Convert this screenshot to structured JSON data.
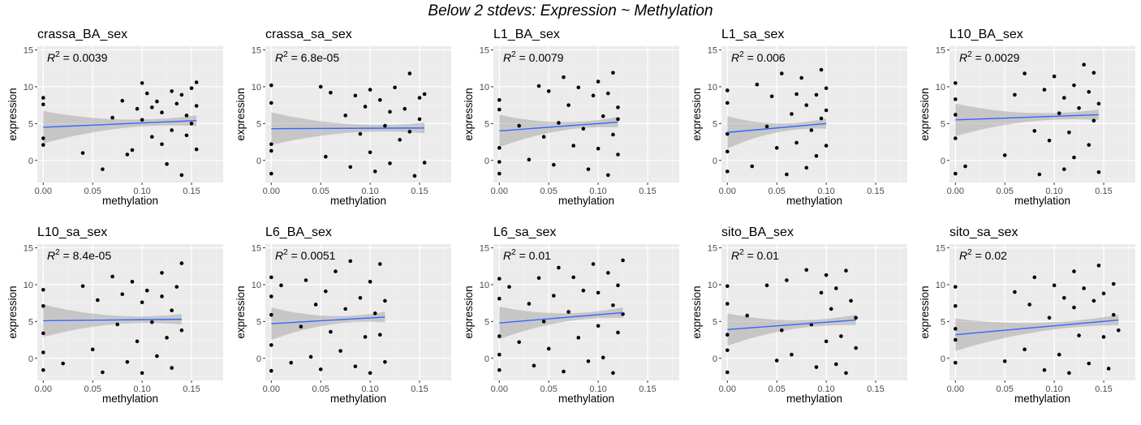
{
  "title": "Below 2 stdevs: Expression ~ Methylation",
  "chart_data": [
    {
      "type": "scatter",
      "title": "crassa_BA_sex",
      "r2_label": "R",
      "r2_value": " = 0.0039",
      "xlabel": "methylation",
      "ylabel": "expression",
      "xlim": [
        -0.006,
        0.182
      ],
      "ylim": [
        -3,
        15.5
      ],
      "xticks": [
        "0.00",
        "0.05",
        "0.10",
        "0.15"
      ],
      "yticks": [
        "0",
        "5",
        "10",
        "15"
      ],
      "fit": {
        "x": [
          0,
          0.155
        ],
        "y": [
          4.5,
          5.4
        ]
      },
      "points_x": [
        0,
        0,
        0,
        0,
        0.04,
        0.06,
        0.07,
        0.08,
        0.085,
        0.09,
        0.095,
        0.1,
        0.1,
        0.105,
        0.11,
        0.11,
        0.115,
        0.12,
        0.12,
        0.125,
        0.13,
        0.13,
        0.135,
        0.14,
        0.14,
        0.145,
        0.145,
        0.15,
        0.15,
        0.155,
        0.155,
        0.155
      ],
      "points_y": [
        8.5,
        7.6,
        3.0,
        2.1,
        1.0,
        -1.2,
        5.8,
        8.1,
        0.8,
        1.4,
        7.0,
        10.5,
        5.5,
        9.1,
        7.2,
        3.2,
        8.0,
        6.5,
        2.2,
        -0.5,
        9.4,
        4.1,
        7.7,
        8.9,
        -2.0,
        6.1,
        3.4,
        9.8,
        5.0,
        10.6,
        7.4,
        1.5
      ]
    },
    {
      "type": "scatter",
      "title": "crassa_sa_sex",
      "r2_label": "R",
      "r2_value": " = 6.8e-05",
      "xlabel": "methylation",
      "ylabel": "expression",
      "xlim": [
        -0.006,
        0.182
      ],
      "ylim": [
        -3,
        15.5
      ],
      "xticks": [
        "0.00",
        "0.05",
        "0.10",
        "0.15"
      ],
      "yticks": [
        "0",
        "5",
        "10",
        "15"
      ],
      "fit": {
        "x": [
          0,
          0.155
        ],
        "y": [
          4.3,
          4.4
        ]
      },
      "points_x": [
        0,
        0,
        0,
        0,
        0,
        0.05,
        0.055,
        0.06,
        0.075,
        0.08,
        0.085,
        0.09,
        0.095,
        0.1,
        0.1,
        0.105,
        0.11,
        0.115,
        0.12,
        0.12,
        0.125,
        0.13,
        0.135,
        0.14,
        0.14,
        0.145,
        0.15,
        0.15,
        0.155,
        0.155
      ],
      "points_y": [
        10.2,
        7.8,
        2.2,
        -1.8,
        1.3,
        10.0,
        0.5,
        9.2,
        6.1,
        -0.9,
        8.8,
        3.6,
        7.3,
        9.6,
        1.1,
        -1.5,
        8.2,
        4.7,
        6.6,
        -0.4,
        9.9,
        2.8,
        7.0,
        11.8,
        3.9,
        -2.1,
        8.5,
        5.6,
        9.0,
        -0.3
      ]
    },
    {
      "type": "scatter",
      "title": "L1_BA_sex",
      "r2_label": "R",
      "r2_value": " = 0.0079",
      "xlabel": "methylation",
      "ylabel": "expression",
      "xlim": [
        -0.006,
        0.182
      ],
      "ylim": [
        -3,
        15.5
      ],
      "xticks": [
        "0.00",
        "0.05",
        "0.10",
        "0.15"
      ],
      "yticks": [
        "0",
        "5",
        "10",
        "15"
      ],
      "fit": {
        "x": [
          0,
          0.12
        ],
        "y": [
          4.0,
          5.2
        ]
      },
      "points_x": [
        0,
        0,
        0,
        0,
        0,
        0.02,
        0.03,
        0.04,
        0.045,
        0.05,
        0.055,
        0.06,
        0.065,
        0.07,
        0.075,
        0.08,
        0.085,
        0.09,
        0.095,
        0.1,
        0.1,
        0.105,
        0.11,
        0.11,
        0.115,
        0.115,
        0.12,
        0.12,
        0.12
      ],
      "points_y": [
        8.2,
        6.9,
        -1.8,
        1.7,
        -0.2,
        4.7,
        0.1,
        10.1,
        3.2,
        9.4,
        -0.6,
        5.1,
        11.3,
        7.5,
        2.0,
        9.9,
        4.3,
        -1.2,
        8.8,
        1.6,
        10.7,
        6.0,
        -2.0,
        9.1,
        3.5,
        11.9,
        7.2,
        0.8,
        5.6
      ]
    },
    {
      "type": "scatter",
      "title": "L1_sa_sex",
      "r2_label": "R",
      "r2_value": " = 0.006",
      "xlabel": "methylation",
      "ylabel": "expression",
      "xlim": [
        -0.006,
        0.182
      ],
      "ylim": [
        -3,
        15.5
      ],
      "xticks": [
        "0.00",
        "0.05",
        "0.10",
        "0.15"
      ],
      "yticks": [
        "0",
        "5",
        "10",
        "15"
      ],
      "fit": {
        "x": [
          0,
          0.1
        ],
        "y": [
          3.8,
          5.0
        ]
      },
      "points_x": [
        0,
        0,
        0,
        0,
        0,
        0.025,
        0.03,
        0.04,
        0.045,
        0.05,
        0.055,
        0.06,
        0.065,
        0.07,
        0.07,
        0.075,
        0.08,
        0.08,
        0.085,
        0.09,
        0.09,
        0.095,
        0.095,
        0.1,
        0.1,
        0.1
      ],
      "points_y": [
        9.5,
        7.8,
        -1.5,
        1.2,
        3.6,
        -0.8,
        10.3,
        4.6,
        8.7,
        1.7,
        11.8,
        -1.9,
        6.3,
        9.0,
        2.4,
        11.2,
        -1.0,
        7.5,
        4.1,
        8.9,
        0.6,
        5.7,
        12.3,
        9.8,
        2.0,
        6.8
      ]
    },
    {
      "type": "scatter",
      "title": "L10_BA_sex",
      "r2_label": "R",
      "r2_value": " = 0.0029",
      "xlabel": "methylation",
      "ylabel": "expression",
      "xlim": [
        -0.006,
        0.182
      ],
      "ylim": [
        -3,
        15.5
      ],
      "xticks": [
        "0.00",
        "0.05",
        "0.10",
        "0.15"
      ],
      "yticks": [
        "0",
        "5",
        "10",
        "15"
      ],
      "fit": {
        "x": [
          0,
          0.145
        ],
        "y": [
          5.5,
          6.2
        ]
      },
      "points_x": [
        0,
        0,
        0,
        0,
        0,
        0.01,
        0.05,
        0.06,
        0.07,
        0.08,
        0.085,
        0.09,
        0.095,
        0.1,
        0.105,
        0.11,
        0.11,
        0.115,
        0.12,
        0.12,
        0.125,
        0.13,
        0.135,
        0.135,
        0.14,
        0.14,
        0.145,
        0.145
      ],
      "points_y": [
        10.5,
        8.3,
        6.2,
        -1.8,
        3.0,
        -0.8,
        0.7,
        8.9,
        11.8,
        4.0,
        -1.9,
        9.6,
        2.7,
        11.4,
        6.4,
        -1.2,
        8.5,
        3.8,
        10.2,
        0.4,
        7.1,
        13.0,
        2.1,
        9.3,
        5.4,
        11.9,
        -1.6,
        7.7
      ]
    },
    {
      "type": "scatter",
      "title": "L10_sa_sex",
      "r2_label": "R",
      "r2_value": " = 8.4e-05",
      "xlabel": "methylation",
      "ylabel": "expression",
      "xlim": [
        -0.006,
        0.182
      ],
      "ylim": [
        -3,
        15.5
      ],
      "xticks": [
        "0.00",
        "0.05",
        "0.10",
        "0.15"
      ],
      "yticks": [
        "0",
        "5",
        "10",
        "15"
      ],
      "fit": {
        "x": [
          0,
          0.14
        ],
        "y": [
          5.1,
          5.3
        ]
      },
      "points_x": [
        0,
        0,
        0,
        0,
        0,
        0.02,
        0.04,
        0.05,
        0.055,
        0.06,
        0.07,
        0.075,
        0.08,
        0.085,
        0.09,
        0.095,
        0.1,
        0.1,
        0.105,
        0.11,
        0.115,
        0.12,
        0.12,
        0.125,
        0.13,
        0.13,
        0.135,
        0.14,
        0.14
      ],
      "points_y": [
        9.3,
        7.1,
        -1.6,
        3.4,
        0.8,
        -0.7,
        9.8,
        1.2,
        7.9,
        -1.9,
        11.1,
        4.6,
        8.7,
        -0.5,
        10.4,
        2.3,
        7.6,
        -2.0,
        9.2,
        4.9,
        0.3,
        8.4,
        11.6,
        2.8,
        6.5,
        -1.3,
        9.7,
        12.9,
        3.8
      ]
    },
    {
      "type": "scatter",
      "title": "L6_BA_sex",
      "r2_label": "R",
      "r2_value": " = 0.0051",
      "xlabel": "methylation",
      "ylabel": "expression",
      "xlim": [
        -0.006,
        0.182
      ],
      "ylim": [
        -3,
        15.5
      ],
      "xticks": [
        "0.00",
        "0.05",
        "0.10",
        "0.15"
      ],
      "yticks": [
        "0",
        "5",
        "10",
        "15"
      ],
      "fit": {
        "x": [
          0,
          0.115
        ],
        "y": [
          4.7,
          5.6
        ]
      },
      "points_x": [
        0,
        0,
        0,
        0,
        0,
        0.01,
        0.02,
        0.03,
        0.035,
        0.04,
        0.045,
        0.05,
        0.055,
        0.06,
        0.065,
        0.07,
        0.075,
        0.08,
        0.085,
        0.09,
        0.095,
        0.1,
        0.1,
        0.105,
        0.11,
        0.11,
        0.115,
        0.115
      ],
      "points_y": [
        11.0,
        8.4,
        -1.7,
        5.9,
        1.8,
        9.9,
        -0.6,
        4.3,
        10.6,
        0.2,
        7.3,
        -1.5,
        9.1,
        3.6,
        11.8,
        1.0,
        6.7,
        13.2,
        -1.1,
        8.2,
        2.9,
        10.4,
        -2.0,
        6.1,
        12.8,
        3.2,
        7.8,
        -0.5
      ]
    },
    {
      "type": "scatter",
      "title": "L6_sa_sex",
      "r2_label": "R",
      "r2_value": " = 0.01",
      "xlabel": "methylation",
      "ylabel": "expression",
      "xlim": [
        -0.006,
        0.182
      ],
      "ylim": [
        -3,
        15.5
      ],
      "xticks": [
        "0.00",
        "0.05",
        "0.10",
        "0.15"
      ],
      "yticks": [
        "0",
        "5",
        "10",
        "15"
      ],
      "fit": {
        "x": [
          0,
          0.125
        ],
        "y": [
          4.8,
          6.2
        ]
      },
      "points_x": [
        0,
        0,
        0,
        0,
        0,
        0.01,
        0.02,
        0.03,
        0.035,
        0.04,
        0.045,
        0.05,
        0.055,
        0.06,
        0.065,
        0.07,
        0.075,
        0.08,
        0.085,
        0.09,
        0.095,
        0.1,
        0.1,
        0.105,
        0.11,
        0.115,
        0.115,
        0.12,
        0.12,
        0.125,
        0.125
      ],
      "points_y": [
        10.8,
        8.1,
        -1.6,
        3.0,
        0.5,
        9.7,
        2.2,
        7.4,
        -1.0,
        10.9,
        5.0,
        1.3,
        8.5,
        12.3,
        -1.8,
        6.3,
        11.0,
        2.8,
        9.2,
        -0.4,
        12.8,
        4.4,
        8.9,
        0.1,
        11.6,
        -2.0,
        7.2,
        9.9,
        3.5,
        13.3,
        6.0
      ]
    },
    {
      "type": "scatter",
      "title": "sito_BA_sex",
      "r2_label": "R",
      "r2_value": " = 0.01",
      "xlabel": "methylation",
      "ylabel": "expression",
      "xlim": [
        -0.006,
        0.182
      ],
      "ylim": [
        -3,
        15.5
      ],
      "xticks": [
        "0.00",
        "0.05",
        "0.10",
        "0.15"
      ],
      "yticks": [
        "0",
        "5",
        "10",
        "15"
      ],
      "fit": {
        "x": [
          0,
          0.13
        ],
        "y": [
          3.9,
          5.2
        ]
      },
      "points_x": [
        0,
        0,
        0,
        0,
        0,
        0.02,
        0.04,
        0.05,
        0.055,
        0.06,
        0.065,
        0.08,
        0.085,
        0.09,
        0.095,
        0.1,
        0.1,
        0.105,
        0.11,
        0.11,
        0.115,
        0.12,
        0.12,
        0.125,
        0.13,
        0.13
      ],
      "points_y": [
        9.8,
        7.4,
        -1.9,
        3.2,
        1.1,
        5.8,
        9.9,
        -0.3,
        3.8,
        10.6,
        0.5,
        12.0,
        4.6,
        -1.2,
        8.9,
        2.3,
        11.3,
        6.7,
        -0.8,
        9.5,
        3.0,
        11.9,
        -2.0,
        7.8,
        5.5,
        1.4
      ]
    },
    {
      "type": "scatter",
      "title": "sito_sa_sex",
      "r2_label": "R",
      "r2_value": " = 0.02",
      "xlabel": "methylation",
      "ylabel": "expression",
      "xlim": [
        -0.006,
        0.182
      ],
      "ylim": [
        -3,
        15.5
      ],
      "xticks": [
        "0.00",
        "0.05",
        "0.10",
        "0.15"
      ],
      "yticks": [
        "0",
        "5",
        "10",
        "15"
      ],
      "fit": {
        "x": [
          0,
          0.165
        ],
        "y": [
          3.2,
          5.2
        ]
      },
      "points_x": [
        0,
        0,
        0,
        0,
        0,
        0.05,
        0.06,
        0.07,
        0.075,
        0.08,
        0.09,
        0.095,
        0.1,
        0.105,
        0.11,
        0.115,
        0.12,
        0.12,
        0.125,
        0.13,
        0.135,
        0.14,
        0.145,
        0.15,
        0.15,
        0.155,
        0.16,
        0.16,
        0.165
      ],
      "points_y": [
        9.7,
        7.1,
        -0.6,
        4.0,
        2.5,
        -0.4,
        9.0,
        1.2,
        7.3,
        11.0,
        -1.6,
        5.5,
        9.9,
        0.5,
        8.2,
        -2.0,
        6.9,
        11.8,
        3.1,
        9.5,
        -0.7,
        7.8,
        12.6,
        2.9,
        8.8,
        -1.4,
        10.1,
        5.9,
        3.8
      ]
    }
  ]
}
